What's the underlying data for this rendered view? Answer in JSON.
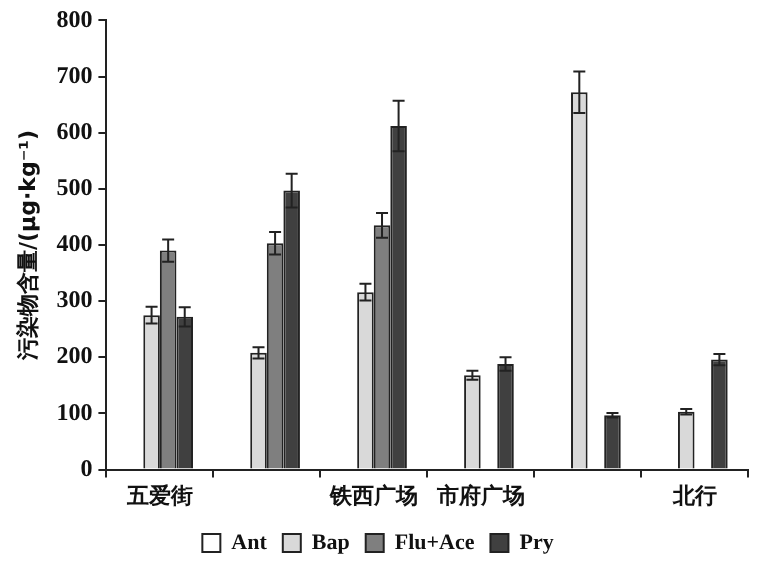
{
  "chart_data": {
    "type": "bar",
    "ylabel": "污染物含量/(μg·kg⁻¹)",
    "categories": [
      "五爱街",
      null,
      "铁西广场",
      "市府广场",
      null,
      "北行"
    ],
    "series": [
      {
        "name": "Ant",
        "color": "#ffffff",
        "values": [
          null,
          null,
          null,
          null,
          null,
          null
        ]
      },
      {
        "name": "Bap",
        "color": "#d9d9d9",
        "values": [
          275,
          208,
          316,
          168,
          672,
          103
        ],
        "errors": [
          15,
          10,
          15,
          8,
          37,
          5
        ]
      },
      {
        "name": "Flu+Ace",
        "color": "#7f7f7f",
        "values": [
          390,
          403,
          435,
          null,
          null,
          null
        ],
        "errors": [
          20,
          20,
          22,
          null,
          null,
          null
        ]
      },
      {
        "name": "Pry",
        "color": "#404040",
        "values": [
          272,
          497,
          612,
          188,
          97,
          196
        ],
        "errors": [
          17,
          30,
          45,
          12,
          4,
          10
        ]
      }
    ],
    "ylim": [
      0,
      800
    ],
    "yticks": [
      0,
      100,
      200,
      300,
      400,
      500,
      600,
      700,
      800
    ],
    "grid": false,
    "legend": "bottom"
  }
}
